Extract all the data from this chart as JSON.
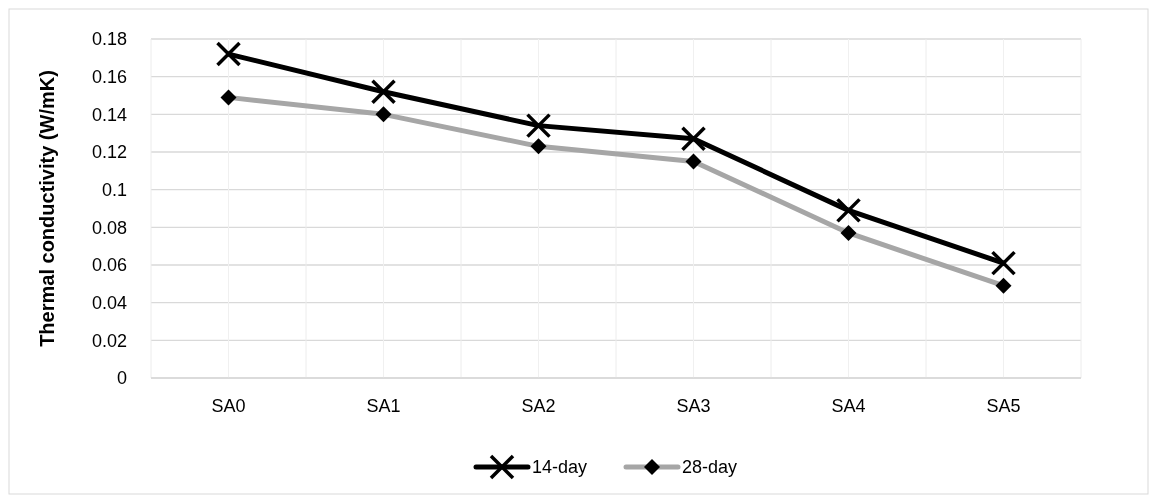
{
  "chart_data": {
    "type": "line",
    "ylabel": "Thermal conductivity (W/mK)",
    "categories": [
      "SA0",
      "SA1",
      "SA2",
      "SA3",
      "SA4",
      "SA5"
    ],
    "series": [
      {
        "name": "14-day",
        "color": "#000000",
        "marker": "cross",
        "values": [
          0.172,
          0.152,
          0.134,
          0.127,
          0.089,
          0.061
        ]
      },
      {
        "name": "28-day",
        "color": "#a6a6a6",
        "marker": "diamond",
        "values": [
          0.149,
          0.14,
          0.123,
          0.115,
          0.077,
          0.049
        ]
      }
    ],
    "ylim": [
      0,
      0.18
    ],
    "yticks": [
      0,
      0.02,
      0.04,
      0.06,
      0.08,
      0.1,
      0.12,
      0.14,
      0.16,
      0.18
    ],
    "grid": true,
    "legend": "bottom",
    "line_style": "solid"
  }
}
